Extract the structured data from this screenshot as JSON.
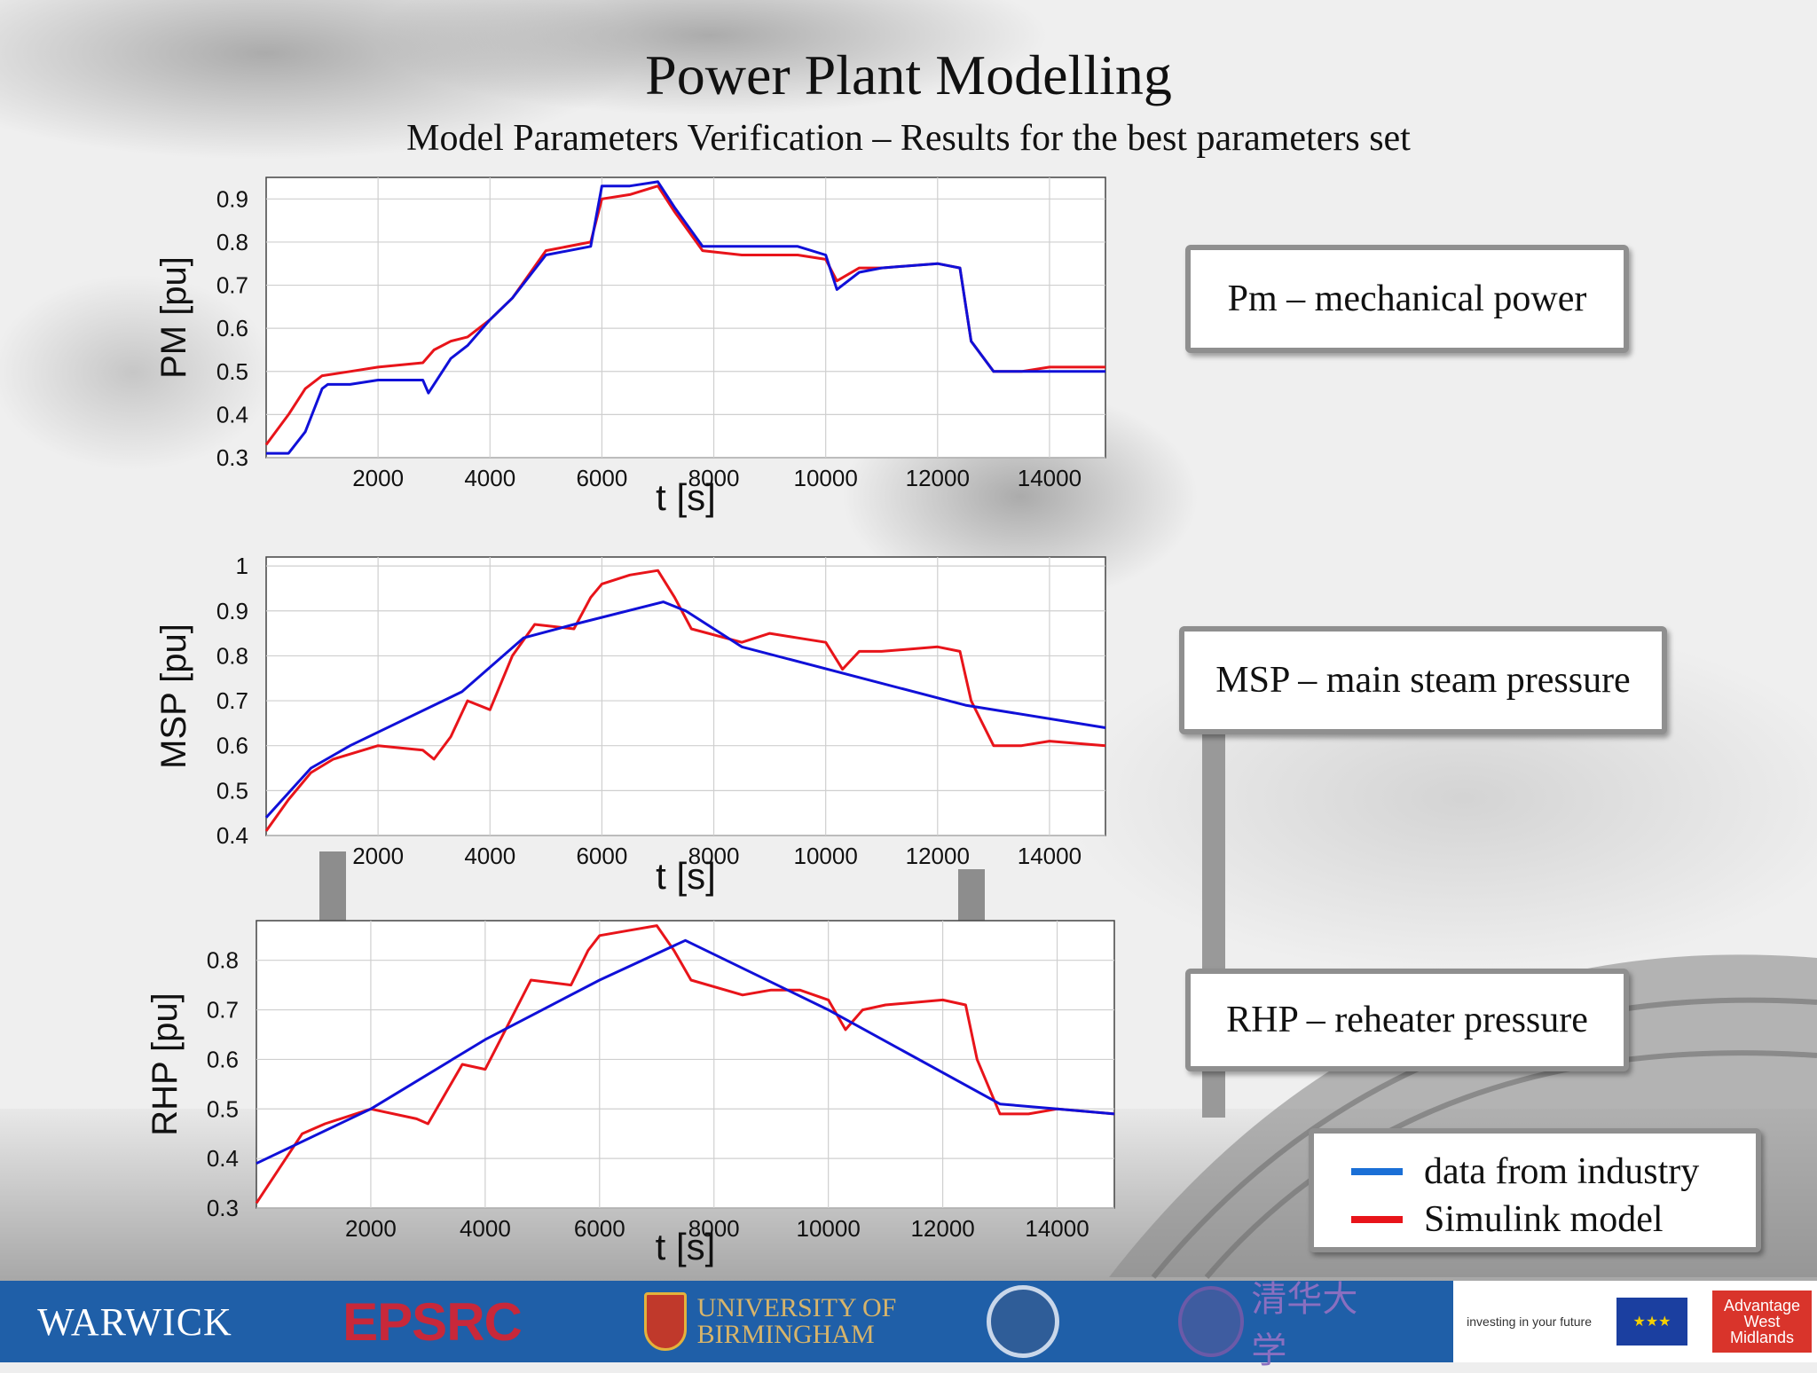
{
  "slide": {
    "title": "Power Plant Modelling",
    "subtitle": "Model Parameters Verification – Results for the best parameters set"
  },
  "boxes": {
    "pm": "Pm – mechanical power",
    "msp": "MSP – main steam pressure",
    "rhp": "RHP – reheater pressure"
  },
  "legend": {
    "industry": "data from industry",
    "simulink": "Simulink model"
  },
  "colors": {
    "industry": "#1010d8",
    "simulink": "#e8141a",
    "legend_industry": "#1a6fd6"
  },
  "footer": {
    "warwick": "WARWICK",
    "epsrc": "EPSRC",
    "birmingham_line1": "UNIVERSITY OF",
    "birmingham_line2": "BIRMINGHAM",
    "tsinghua": "清华大学",
    "eu_text": "investing in your future",
    "advantage": "Advantage West Midlands"
  },
  "chart_data": [
    {
      "type": "line",
      "ylabel": "PM [pu]",
      "xlabel": "t [s]",
      "xlim": [
        0,
        15000
      ],
      "ylim": [
        0.3,
        0.95
      ],
      "xticks": [
        2000,
        4000,
        6000,
        8000,
        10000,
        12000,
        14000
      ],
      "yticks": [
        0.3,
        0.4,
        0.5,
        0.6,
        0.7,
        0.8,
        0.9
      ],
      "grid": true,
      "series": [
        {
          "name": "data from industry",
          "x": [
            0,
            400,
            700,
            1000,
            1100,
            1500,
            2000,
            2800,
            2900,
            3300,
            3600,
            4000,
            4400,
            5000,
            5800,
            6000,
            6500,
            7000,
            7300,
            7800,
            8500,
            9000,
            9500,
            10000,
            10200,
            10600,
            11000,
            12000,
            12400,
            12600,
            13000,
            13500,
            14000,
            15000
          ],
          "y": [
            0.31,
            0.31,
            0.36,
            0.46,
            0.47,
            0.47,
            0.48,
            0.48,
            0.45,
            0.53,
            0.56,
            0.62,
            0.67,
            0.77,
            0.79,
            0.93,
            0.93,
            0.94,
            0.88,
            0.79,
            0.79,
            0.79,
            0.79,
            0.77,
            0.69,
            0.73,
            0.74,
            0.75,
            0.74,
            0.57,
            0.5,
            0.5,
            0.5,
            0.5
          ]
        },
        {
          "name": "Simulink model",
          "x": [
            0,
            400,
            700,
            1000,
            1500,
            2000,
            2800,
            3000,
            3300,
            3600,
            4000,
            4400,
            5000,
            5800,
            6000,
            6500,
            7000,
            7300,
            7800,
            8500,
            9000,
            9500,
            10000,
            10200,
            10600,
            11000,
            12000,
            12400,
            12600,
            13000,
            13500,
            14000,
            15000
          ],
          "y": [
            0.33,
            0.4,
            0.46,
            0.49,
            0.5,
            0.51,
            0.52,
            0.55,
            0.57,
            0.58,
            0.62,
            0.67,
            0.78,
            0.8,
            0.9,
            0.91,
            0.93,
            0.87,
            0.78,
            0.77,
            0.77,
            0.77,
            0.76,
            0.71,
            0.74,
            0.74,
            0.75,
            0.74,
            0.57,
            0.5,
            0.5,
            0.51,
            0.51
          ]
        }
      ]
    },
    {
      "type": "line",
      "ylabel": "MSP [pu]",
      "xlabel": "t [s]",
      "xlim": [
        0,
        15000
      ],
      "ylim": [
        0.4,
        1.02
      ],
      "xticks": [
        2000,
        4000,
        6000,
        8000,
        10000,
        12000,
        14000
      ],
      "yticks": [
        0.4,
        0.5,
        0.6,
        0.7,
        0.8,
        0.9,
        1
      ],
      "grid": true,
      "series": [
        {
          "name": "data from industry",
          "x": [
            0,
            800,
            1500,
            3500,
            4600,
            5500,
            7100,
            7500,
            8500,
            12500,
            15000
          ],
          "y": [
            0.44,
            0.55,
            0.6,
            0.72,
            0.84,
            0.87,
            0.92,
            0.9,
            0.82,
            0.69,
            0.64
          ]
        },
        {
          "name": "Simulink model",
          "x": [
            0,
            400,
            800,
            1200,
            2000,
            2800,
            3000,
            3300,
            3600,
            4000,
            4400,
            4800,
            5500,
            5800,
            6000,
            6500,
            7000,
            7300,
            7600,
            8500,
            9000,
            9500,
            10000,
            10300,
            10600,
            11000,
            12000,
            12400,
            12600,
            13000,
            13500,
            14000,
            15000
          ],
          "y": [
            0.41,
            0.48,
            0.54,
            0.57,
            0.6,
            0.59,
            0.57,
            0.62,
            0.7,
            0.68,
            0.8,
            0.87,
            0.86,
            0.93,
            0.96,
            0.98,
            0.99,
            0.93,
            0.86,
            0.83,
            0.85,
            0.84,
            0.83,
            0.77,
            0.81,
            0.81,
            0.82,
            0.81,
            0.7,
            0.6,
            0.6,
            0.61,
            0.6
          ]
        }
      ]
    },
    {
      "type": "line",
      "ylabel": "RHP [pu]",
      "xlabel": "t [s]",
      "xlim": [
        0,
        15000
      ],
      "ylim": [
        0.3,
        0.88
      ],
      "xticks": [
        2000,
        4000,
        6000,
        8000,
        10000,
        12000,
        14000
      ],
      "yticks": [
        0.3,
        0.4,
        0.5,
        0.6,
        0.7,
        0.8
      ],
      "grid": true,
      "series": [
        {
          "name": "data from industry",
          "x": [
            0,
            2000,
            4000,
            6000,
            7500,
            10000,
            13000,
            14000,
            15000
          ],
          "y": [
            0.39,
            0.5,
            0.64,
            0.76,
            0.84,
            0.7,
            0.51,
            0.5,
            0.49
          ]
        },
        {
          "name": "Simulink model",
          "x": [
            0,
            400,
            800,
            1200,
            2000,
            2800,
            3000,
            3300,
            3600,
            4000,
            4400,
            4800,
            5500,
            5800,
            6000,
            6500,
            7000,
            7300,
            7600,
            8500,
            9000,
            9500,
            10000,
            10300,
            10600,
            11000,
            12000,
            12400,
            12600,
            13000,
            13500,
            14000,
            15000
          ],
          "y": [
            0.31,
            0.38,
            0.45,
            0.47,
            0.5,
            0.48,
            0.47,
            0.53,
            0.59,
            0.58,
            0.67,
            0.76,
            0.75,
            0.82,
            0.85,
            0.86,
            0.87,
            0.82,
            0.76,
            0.73,
            0.74,
            0.74,
            0.72,
            0.66,
            0.7,
            0.71,
            0.72,
            0.71,
            0.6,
            0.49,
            0.49,
            0.5,
            0.49
          ]
        }
      ]
    }
  ]
}
